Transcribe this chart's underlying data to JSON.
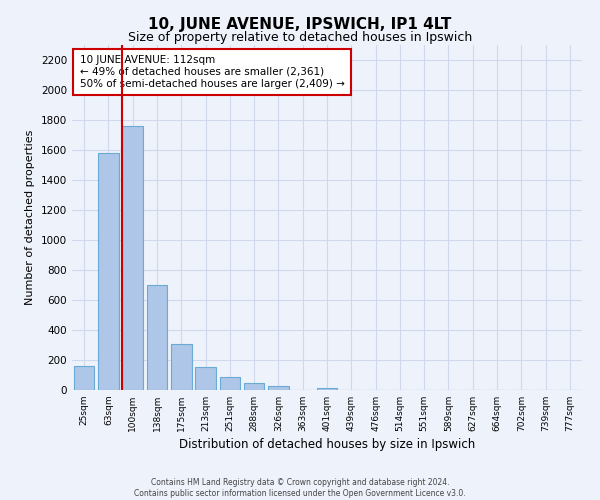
{
  "title": "10, JUNE AVENUE, IPSWICH, IP1 4LT",
  "subtitle": "Size of property relative to detached houses in Ipswich",
  "xlabel": "Distribution of detached houses by size in Ipswich",
  "ylabel": "Number of detached properties",
  "categories": [
    "25sqm",
    "63sqm",
    "100sqm",
    "138sqm",
    "175sqm",
    "213sqm",
    "251sqm",
    "288sqm",
    "326sqm",
    "363sqm",
    "401sqm",
    "439sqm",
    "476sqm",
    "514sqm",
    "551sqm",
    "589sqm",
    "627sqm",
    "664sqm",
    "702sqm",
    "739sqm",
    "777sqm"
  ],
  "values": [
    160,
    1580,
    1760,
    700,
    310,
    155,
    85,
    50,
    30,
    0,
    15,
    0,
    0,
    0,
    0,
    0,
    0,
    0,
    0,
    0,
    0
  ],
  "bar_color": "#aec6e8",
  "bar_edge_color": "#6aaad4",
  "red_line_index": 2,
  "annotation_title": "10 JUNE AVENUE: 112sqm",
  "annotation_line1": "← 49% of detached houses are smaller (2,361)",
  "annotation_line2": "50% of semi-detached houses are larger (2,409) →",
  "footer_line1": "Contains HM Land Registry data © Crown copyright and database right 2024.",
  "footer_line2": "Contains public sector information licensed under the Open Government Licence v3.0.",
  "ylim": [
    0,
    2300
  ],
  "background_color": "#eef2fb",
  "plot_bg_color": "#eef2fb",
  "grid_color": "#d0d8ee"
}
